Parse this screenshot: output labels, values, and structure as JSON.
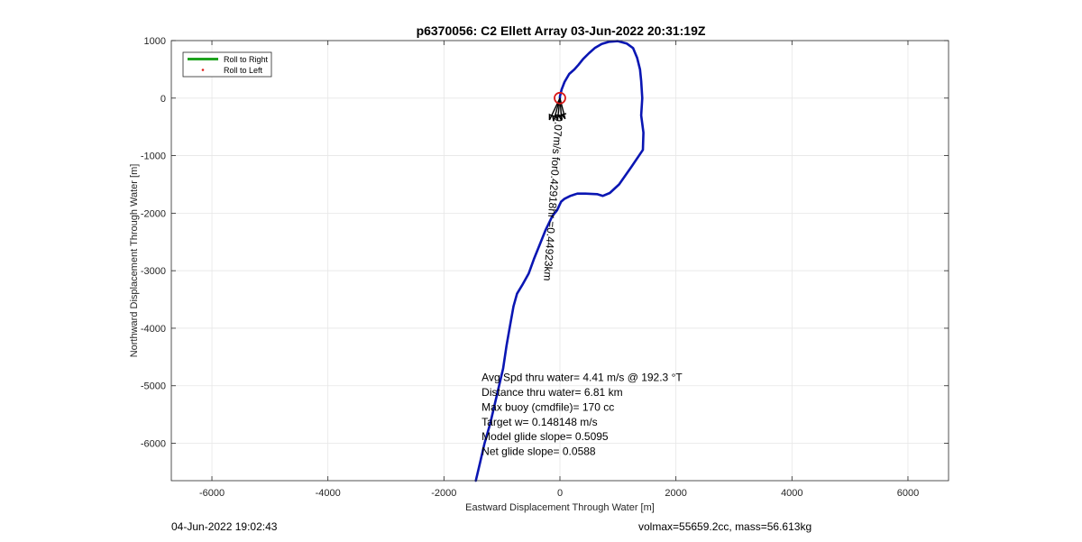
{
  "footer": {
    "datetime": "04-Jun-2022 19:02:43",
    "volmass": "volmax=55659.2cc, mass=56.613kg"
  },
  "colors": {
    "track": "#0a16b3",
    "legend_right": "#1fa31f",
    "legend_left": "#e0201b",
    "marker": "#d91a1a",
    "arrows": "#000000",
    "grid": "#e6e6e6",
    "axis": "#262626"
  },
  "chart_data": {
    "type": "line",
    "title": "p6370056: C2 Ellett Array 03-Jun-2022 20:31:19Z",
    "xlabel": "Eastward Displacement Through Water [m]",
    "ylabel": "Northward Displacement Through Water [m]",
    "xlim": [
      -6700,
      6700
    ],
    "ylim": [
      -6650,
      1000
    ],
    "xticks": [
      -6000,
      -4000,
      -2000,
      0,
      2000,
      4000,
      6000
    ],
    "yticks": [
      1000,
      0,
      -1000,
      -2000,
      -3000,
      -4000,
      -5000,
      -6000
    ],
    "grid": true,
    "legend_position": "top-left",
    "legend": [
      {
        "label": "Roll to Right",
        "style": "line"
      },
      {
        "label": "Roll to Left",
        "style": "dot"
      }
    ],
    "series": [
      {
        "name": "Roll to Right",
        "x": [
          -1450,
          -1380,
          -1300,
          -1200,
          -1120,
          -1050,
          -980,
          -920,
          -860,
          -800,
          -740,
          -650,
          -540,
          -450,
          -350,
          -250,
          -130,
          -50,
          20,
          80,
          180,
          300,
          440,
          640,
          740,
          860,
          1020,
          1230,
          1430,
          1440,
          1400,
          1420,
          1400,
          1380,
          1330,
          1260,
          1150,
          1000,
          850,
          720,
          600,
          500,
          400,
          320,
          250,
          160,
          80,
          30,
          0,
          0
        ],
        "y": [
          -6650,
          -6350,
          -6000,
          -5650,
          -5300,
          -5000,
          -4700,
          -4300,
          -3950,
          -3620,
          -3400,
          -3250,
          -3050,
          -2800,
          -2550,
          -2300,
          -2050,
          -1950,
          -1800,
          -1750,
          -1700,
          -1660,
          -1660,
          -1670,
          -1700,
          -1650,
          -1500,
          -1200,
          -900,
          -600,
          -300,
          0,
          300,
          500,
          700,
          870,
          950,
          990,
          980,
          940,
          870,
          780,
          680,
          580,
          500,
          420,
          280,
          150,
          30,
          0
        ]
      }
    ],
    "start_marker": {
      "x": 0,
      "y": 0,
      "label": ""
    },
    "current_arrows": [
      {
        "x": 0,
        "y": 0,
        "dx": -180,
        "dy": -380
      },
      {
        "x": 0,
        "y": 0,
        "dx": -110,
        "dy": -400
      },
      {
        "x": 0,
        "y": 0,
        "dx": -40,
        "dy": -380
      },
      {
        "x": 0,
        "y": 0,
        "dx": 30,
        "dy": -390
      },
      {
        "x": 0,
        "y": 0,
        "dx": 90,
        "dy": -360
      }
    ],
    "depth_avg_text": "0.07m/s for0.42918hr =0.44923km",
    "depth_avg_label_pos": {
      "x": -80,
      "y": -300
    },
    "stats_pos": {
      "x": -1350,
      "y": -4920
    },
    "stats": [
      "Avg Spd thru water=  4.41 m/s @ 192.3 °T",
      "Distance thru water=  6.81 km",
      "Max buoy (cmdfile)= 170 cc",
      "Target w= 0.148148 m/s",
      "Model glide slope= 0.5095",
      "Net glide slope= 0.0588"
    ]
  }
}
